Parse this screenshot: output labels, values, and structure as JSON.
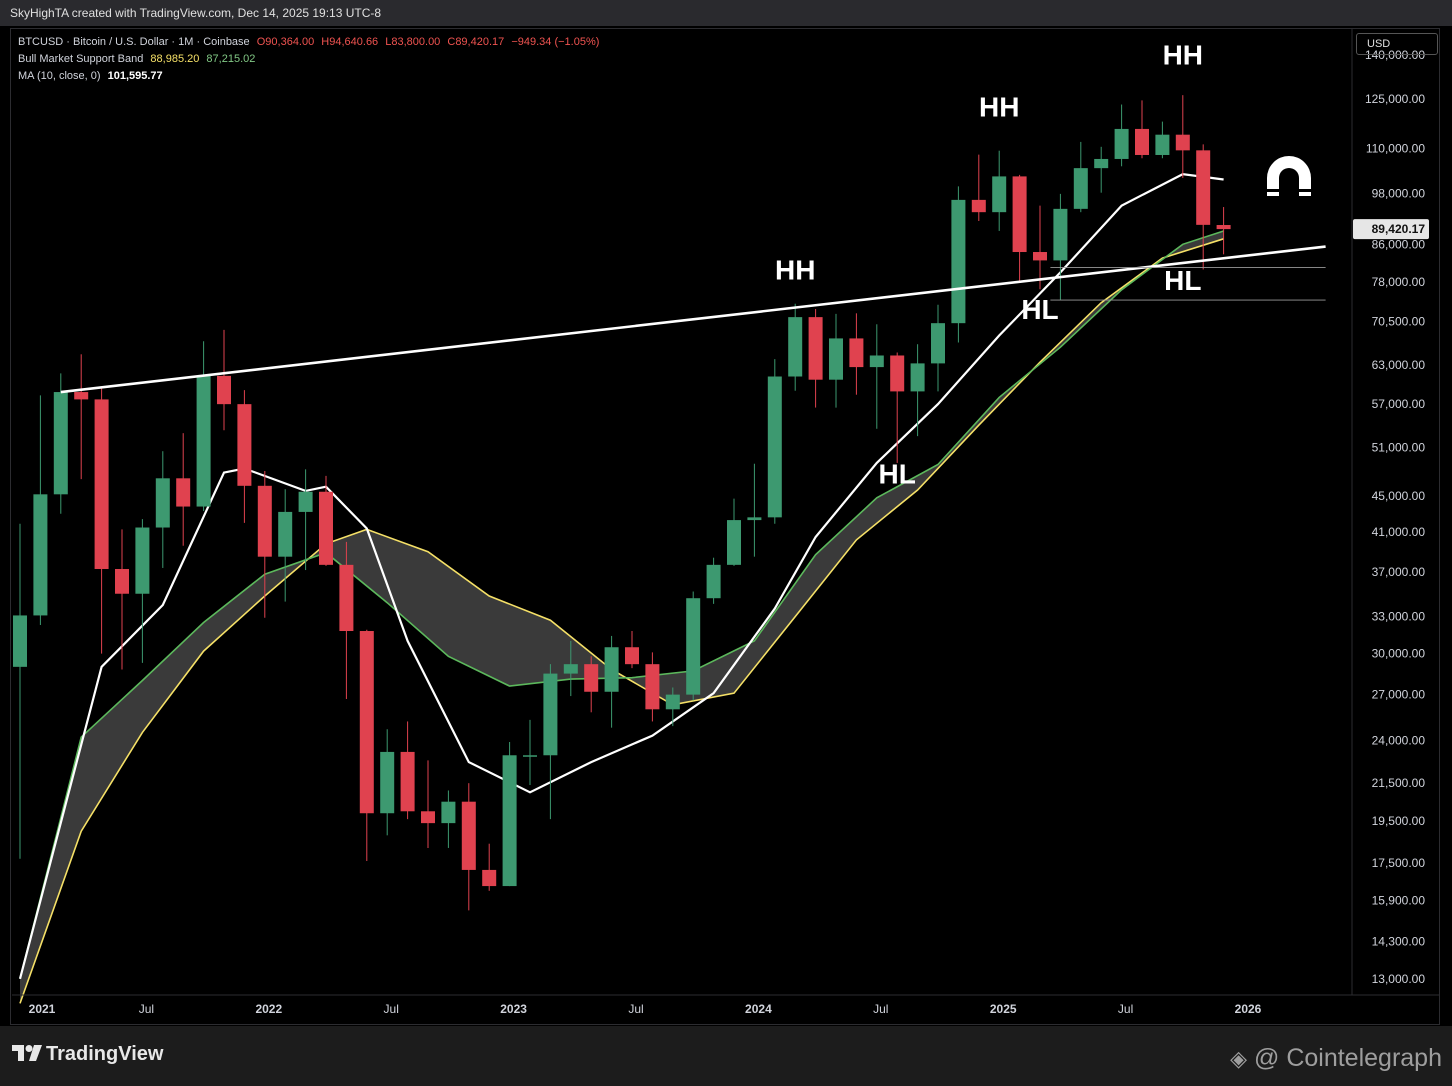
{
  "header": {
    "credit": "SkyHighTA created with TradingView.com, Dec 14, 2025 19:13 UTC-8"
  },
  "legend": {
    "symbol": "BTCUSD · Bitcoin / U.S. Dollar · 1M · Coinbase",
    "open": "O90,364.00",
    "high": "H94,640.66",
    "low": "L83,800.00",
    "close": "C89,420.17",
    "change": "−949.34 (−1.05%)",
    "band_label": "Bull Market Support Band",
    "band_v1": "88,985.20",
    "band_v2": "87,215.02",
    "ma_label": "MA (10, close, 0)",
    "ma_value": "101,595.77"
  },
  "currency_button": "USD",
  "footer": {
    "tradingview": "TradingView",
    "source": "@ Cointelegraph"
  },
  "icons": {
    "magnet": "magnet-icon",
    "tradingview_logo": "tradingview-logo-icon",
    "cointelegraph_logo": "cointelegraph-logo-icon"
  },
  "colors": {
    "up": "#3d9970",
    "down": "#e0424f",
    "ema": "#5cb85c",
    "sma": "#f5e067",
    "ma": "#ffffff",
    "band": "#444444"
  },
  "chart_data": {
    "type": "candlestick",
    "y_scale": "log",
    "ylim": [
      12500,
      150000
    ],
    "y_ticks": [
      "140,000.00",
      "125,000.00",
      "110,000.00",
      "98,000.00",
      "86,000.00",
      "78,000.00",
      "70,500.00",
      "63,000.00",
      "57,000.00",
      "51,000.00",
      "45,000.00",
      "41,000.00",
      "37,000.00",
      "33,000.00",
      "30,000.00",
      "27,000.00",
      "24,000.00",
      "21,500.00",
      "19,500.00",
      "17,500.00",
      "15,900.00",
      "14,300.00",
      "13,000.00"
    ],
    "x_ticks": [
      "2021",
      "Jul",
      "2022",
      "Jul",
      "2023",
      "Jul",
      "2024",
      "Jul",
      "2025",
      "Jul",
      "2026"
    ],
    "last_price_label": "89,420.17",
    "candles": [
      {
        "t": "2021-01",
        "o": 29000,
        "h": 41900,
        "l": 17700,
        "c": 33100
      },
      {
        "t": "2021-02",
        "o": 33100,
        "h": 58300,
        "l": 32300,
        "c": 45200
      },
      {
        "t": "2021-03",
        "o": 45200,
        "h": 61700,
        "l": 43000,
        "c": 58800
      },
      {
        "t": "2021-04",
        "o": 58800,
        "h": 64800,
        "l": 47000,
        "c": 57700
      },
      {
        "t": "2021-05",
        "o": 57700,
        "h": 59500,
        "l": 30000,
        "c": 37300
      },
      {
        "t": "2021-06",
        "o": 37300,
        "h": 41300,
        "l": 28800,
        "c": 35000
      },
      {
        "t": "2021-07",
        "o": 35000,
        "h": 42400,
        "l": 29300,
        "c": 41500
      },
      {
        "t": "2021-08",
        "o": 41500,
        "h": 50500,
        "l": 37400,
        "c": 47100
      },
      {
        "t": "2021-09",
        "o": 47100,
        "h": 52900,
        "l": 39600,
        "c": 43800
      },
      {
        "t": "2021-10",
        "o": 43800,
        "h": 67000,
        "l": 43300,
        "c": 61300
      },
      {
        "t": "2021-11",
        "o": 61300,
        "h": 69000,
        "l": 53300,
        "c": 57000
      },
      {
        "t": "2021-12",
        "o": 57000,
        "h": 59100,
        "l": 42000,
        "c": 46200
      },
      {
        "t": "2022-01",
        "o": 46200,
        "h": 48000,
        "l": 32900,
        "c": 38500
      },
      {
        "t": "2022-02",
        "o": 38500,
        "h": 45800,
        "l": 34300,
        "c": 43200
      },
      {
        "t": "2022-03",
        "o": 43200,
        "h": 48200,
        "l": 37200,
        "c": 45500
      },
      {
        "t": "2022-04",
        "o": 45500,
        "h": 47400,
        "l": 37600,
        "c": 37700
      },
      {
        "t": "2022-05",
        "o": 37700,
        "h": 40000,
        "l": 26700,
        "c": 31800
      },
      {
        "t": "2022-06",
        "o": 31800,
        "h": 31900,
        "l": 17600,
        "c": 19900
      },
      {
        "t": "2022-07",
        "o": 19900,
        "h": 24700,
        "l": 18800,
        "c": 23300
      },
      {
        "t": "2022-08",
        "o": 23300,
        "h": 25200,
        "l": 19600,
        "c": 20000
      },
      {
        "t": "2022-09",
        "o": 20000,
        "h": 22800,
        "l": 18200,
        "c": 19400
      },
      {
        "t": "2022-10",
        "o": 19400,
        "h": 21100,
        "l": 18200,
        "c": 20500
      },
      {
        "t": "2022-11",
        "o": 20500,
        "h": 21500,
        "l": 15500,
        "c": 17200
      },
      {
        "t": "2022-12",
        "o": 17200,
        "h": 18400,
        "l": 16300,
        "c": 16500
      },
      {
        "t": "2023-01",
        "o": 16500,
        "h": 23900,
        "l": 16500,
        "c": 23100
      },
      {
        "t": "2023-02",
        "o": 23100,
        "h": 25300,
        "l": 21400,
        "c": 23100
      },
      {
        "t": "2023-03",
        "o": 23100,
        "h": 29200,
        "l": 19600,
        "c": 28500
      },
      {
        "t": "2023-04",
        "o": 28500,
        "h": 31000,
        "l": 26900,
        "c": 29200
      },
      {
        "t": "2023-05",
        "o": 29200,
        "h": 29800,
        "l": 25800,
        "c": 27200
      },
      {
        "t": "2023-06",
        "o": 27200,
        "h": 31400,
        "l": 24800,
        "c": 30500
      },
      {
        "t": "2023-07",
        "o": 30500,
        "h": 31800,
        "l": 28900,
        "c": 29200
      },
      {
        "t": "2023-08",
        "o": 29200,
        "h": 30100,
        "l": 25200,
        "c": 26000
      },
      {
        "t": "2023-09",
        "o": 26000,
        "h": 27500,
        "l": 24900,
        "c": 27000
      },
      {
        "t": "2023-10",
        "o": 27000,
        "h": 35200,
        "l": 26600,
        "c": 34600
      },
      {
        "t": "2023-11",
        "o": 34600,
        "h": 38400,
        "l": 34100,
        "c": 37700
      },
      {
        "t": "2023-12",
        "o": 37700,
        "h": 44700,
        "l": 37600,
        "c": 42300
      },
      {
        "t": "2024-01",
        "o": 42300,
        "h": 48900,
        "l": 38500,
        "c": 42600
      },
      {
        "t": "2024-02",
        "o": 42600,
        "h": 64000,
        "l": 41900,
        "c": 61200
      },
      {
        "t": "2024-03",
        "o": 61200,
        "h": 73800,
        "l": 59000,
        "c": 71300
      },
      {
        "t": "2024-04",
        "o": 71300,
        "h": 72800,
        "l": 56500,
        "c": 60700
      },
      {
        "t": "2024-05",
        "o": 60700,
        "h": 71900,
        "l": 56500,
        "c": 67500
      },
      {
        "t": "2024-06",
        "o": 67500,
        "h": 72000,
        "l": 58400,
        "c": 62700
      },
      {
        "t": "2024-07",
        "o": 62700,
        "h": 70000,
        "l": 53500,
        "c": 64600
      },
      {
        "t": "2024-08",
        "o": 64600,
        "h": 65100,
        "l": 49000,
        "c": 58900
      },
      {
        "t": "2024-09",
        "o": 58900,
        "h": 66500,
        "l": 52500,
        "c": 63300
      },
      {
        "t": "2024-10",
        "o": 63300,
        "h": 73600,
        "l": 58900,
        "c": 70200
      },
      {
        "t": "2024-11",
        "o": 70200,
        "h": 99800,
        "l": 66800,
        "c": 96400
      },
      {
        "t": "2024-12",
        "o": 96400,
        "h": 108300,
        "l": 91300,
        "c": 93400
      },
      {
        "t": "2025-01",
        "o": 93400,
        "h": 109400,
        "l": 89000,
        "c": 102400
      },
      {
        "t": "2025-02",
        "o": 102400,
        "h": 102800,
        "l": 78200,
        "c": 84300
      },
      {
        "t": "2025-03",
        "o": 84300,
        "h": 95000,
        "l": 76600,
        "c": 82500
      },
      {
        "t": "2025-04",
        "o": 82500,
        "h": 97900,
        "l": 74500,
        "c": 94200
      },
      {
        "t": "2025-05",
        "o": 94200,
        "h": 111900,
        "l": 93400,
        "c": 104600
      },
      {
        "t": "2025-06",
        "o": 104600,
        "h": 110500,
        "l": 98200,
        "c": 107100
      },
      {
        "t": "2025-07",
        "o": 107100,
        "h": 123200,
        "l": 105100,
        "c": 115700
      },
      {
        "t": "2025-08",
        "o": 115700,
        "h": 124500,
        "l": 107300,
        "c": 108200
      },
      {
        "t": "2025-09",
        "o": 108200,
        "h": 117900,
        "l": 107300,
        "c": 114000
      },
      {
        "t": "2025-10",
        "o": 114000,
        "h": 126200,
        "l": 102000,
        "c": 109500
      },
      {
        "t": "2025-11",
        "o": 109500,
        "h": 111200,
        "l": 80600,
        "c": 90400
      },
      {
        "t": "2025-12",
        "o": 90364,
        "h": 94640.66,
        "l": 83800,
        "c": 89420.17
      }
    ],
    "indicators": {
      "ma10": [
        {
          "t": "2021-01",
          "v": 13000
        },
        {
          "t": "2021-05",
          "v": 29000
        },
        {
          "t": "2021-08",
          "v": 34000
        },
        {
          "t": "2021-11",
          "v": 47800
        },
        {
          "t": "2021-12",
          "v": 48300
        },
        {
          "t": "2022-03",
          "v": 45600
        },
        {
          "t": "2022-04",
          "v": 46100
        },
        {
          "t": "2022-06",
          "v": 41400
        },
        {
          "t": "2022-08",
          "v": 31000
        },
        {
          "t": "2022-11",
          "v": 22700
        },
        {
          "t": "2023-02",
          "v": 21000
        },
        {
          "t": "2023-05",
          "v": 22700
        },
        {
          "t": "2023-08",
          "v": 24300
        },
        {
          "t": "2023-11",
          "v": 27100
        },
        {
          "t": "2024-02",
          "v": 33700
        },
        {
          "t": "2024-04",
          "v": 40500
        },
        {
          "t": "2024-07",
          "v": 49000
        },
        {
          "t": "2024-10",
          "v": 57000
        },
        {
          "t": "2025-01",
          "v": 68000
        },
        {
          "t": "2025-04",
          "v": 80000
        },
        {
          "t": "2025-07",
          "v": 95000
        },
        {
          "t": "2025-10",
          "v": 103000
        },
        {
          "t": "2025-12",
          "v": 101595.77
        }
      ],
      "band_ema21": [
        {
          "t": "2021-01",
          "v": 13000
        },
        {
          "t": "2021-04",
          "v": 24200
        },
        {
          "t": "2021-07",
          "v": 28000
        },
        {
          "t": "2021-10",
          "v": 32500
        },
        {
          "t": "2022-01",
          "v": 36800
        },
        {
          "t": "2022-04",
          "v": 38900
        },
        {
          "t": "2022-07",
          "v": 34200
        },
        {
          "t": "2022-10",
          "v": 29800
        },
        {
          "t": "2023-01",
          "v": 27600
        },
        {
          "t": "2023-04",
          "v": 28100
        },
        {
          "t": "2023-07",
          "v": 28200
        },
        {
          "t": "2023-10",
          "v": 28700
        },
        {
          "t": "2024-01",
          "v": 31000
        },
        {
          "t": "2024-04",
          "v": 38700
        },
        {
          "t": "2024-07",
          "v": 44800
        },
        {
          "t": "2024-10",
          "v": 48800
        },
        {
          "t": "2025-01",
          "v": 58000
        },
        {
          "t": "2025-04",
          "v": 66000
        },
        {
          "t": "2025-07",
          "v": 76500
        },
        {
          "t": "2025-10",
          "v": 86000
        },
        {
          "t": "2025-12",
          "v": 88985.2
        }
      ],
      "band_sma20": [
        {
          "t": "2021-01",
          "v": 12200
        },
        {
          "t": "2021-04",
          "v": 19000
        },
        {
          "t": "2021-07",
          "v": 24500
        },
        {
          "t": "2021-10",
          "v": 30200
        },
        {
          "t": "2022-01",
          "v": 34800
        },
        {
          "t": "2022-04",
          "v": 39800
        },
        {
          "t": "2022-06",
          "v": 41300
        },
        {
          "t": "2022-09",
          "v": 39000
        },
        {
          "t": "2022-12",
          "v": 34800
        },
        {
          "t": "2023-03",
          "v": 32700
        },
        {
          "t": "2023-06",
          "v": 28800
        },
        {
          "t": "2023-09",
          "v": 26300
        },
        {
          "t": "2023-12",
          "v": 27100
        },
        {
          "t": "2024-03",
          "v": 33000
        },
        {
          "t": "2024-06",
          "v": 40200
        },
        {
          "t": "2024-09",
          "v": 45700
        },
        {
          "t": "2024-12",
          "v": 54000
        },
        {
          "t": "2025-03",
          "v": 63500
        },
        {
          "t": "2025-06",
          "v": 74000
        },
        {
          "t": "2025-09",
          "v": 83000
        },
        {
          "t": "2025-12",
          "v": 87215.02
        }
      ]
    },
    "trendline": {
      "from": {
        "t": "2021-03",
        "v": 58800
      },
      "to": {
        "t": "2026-05",
        "v": 85500
      }
    },
    "support_lines": [
      {
        "from_t": "2025-04",
        "to_t": "2026-05",
        "v": 81000
      },
      {
        "from_t": "2025-04",
        "to_t": "2026-05",
        "v": 74500
      }
    ],
    "annotations": [
      {
        "text": "HH",
        "t": "2024-03",
        "v": 78500
      },
      {
        "text": "HH",
        "t": "2025-01",
        "v": 119500
      },
      {
        "text": "HH",
        "t": "2025-10",
        "v": 136500
      },
      {
        "text": "HL",
        "t": "2024-08",
        "v": 46500
      },
      {
        "text": "HL",
        "t": "2025-03",
        "v": 71000
      },
      {
        "text": "HL",
        "t": "2025-10",
        "v": 76500
      }
    ]
  }
}
